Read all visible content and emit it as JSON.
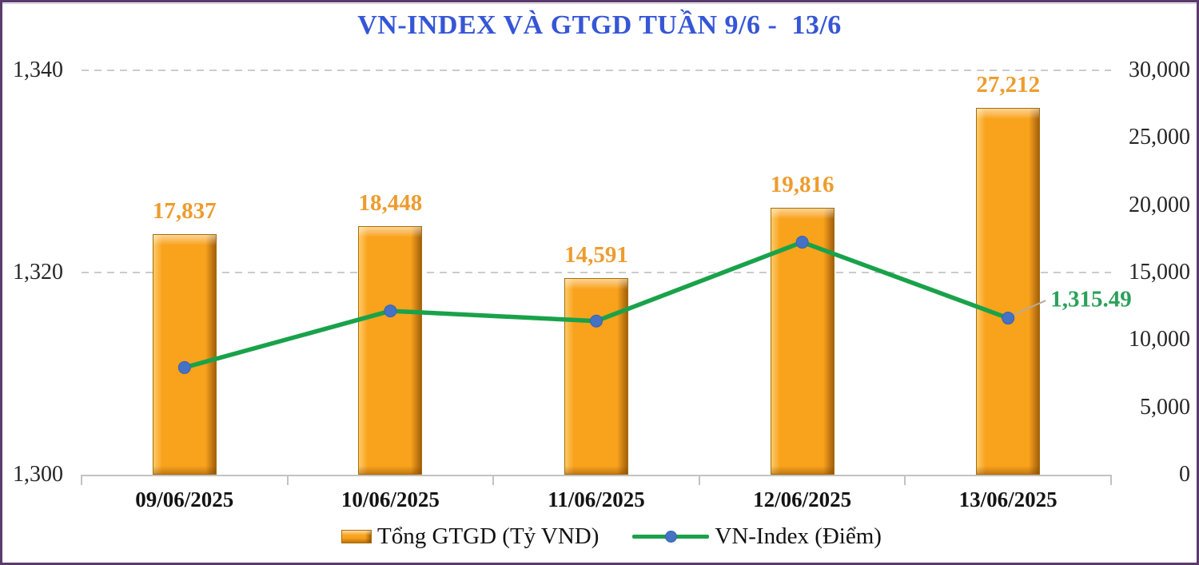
{
  "title": {
    "text": "VN-INDEX VÀ GTGD TUẦN 9/6 -  13/6",
    "color": "#3656D6"
  },
  "frame": {
    "border_color": "#5B3A6E",
    "background": "#FFFFFF"
  },
  "chart_data": {
    "type": "bar",
    "subtype": "dual-axis combo (bars on right axis, line on left axis)",
    "categories": [
      "09/06/2025",
      "10/06/2025",
      "11/06/2025",
      "12/06/2025",
      "13/06/2025"
    ],
    "series": [
      {
        "name": "Tổng GTGD (Tỷ VND)",
        "type": "bar",
        "axis": "right",
        "values": [
          17837,
          18448,
          14591,
          19816,
          27212
        ],
        "labels": [
          "17,837",
          "18,448",
          "14,591",
          "19,816",
          "27,212"
        ],
        "color": "#F9A21C",
        "label_color": "#ED9C2E"
      },
      {
        "name": "VN-Index (Điểm)",
        "type": "line",
        "axis": "left",
        "values": [
          1310.6,
          1316.2,
          1315.2,
          1323.0,
          1315.49
        ],
        "values_note": "only the last point is labeled on the chart; other values estimated from gridlines",
        "color": "#19A24A",
        "marker_color": "#4472C4",
        "end_label": "1,315.49",
        "end_label_color": "#2BA05A"
      }
    ],
    "left_axis": {
      "range": [
        1300,
        1340
      ],
      "ticks": [
        "1,340",
        "1,320",
        "1,300"
      ]
    },
    "right_axis": {
      "range": [
        0,
        30000
      ],
      "ticks": [
        "30,000",
        "25,000",
        "20,000",
        "15,000",
        "10,000",
        "5,000",
        "0"
      ]
    },
    "grid": "horizontal dashed gridlines at 1,320 and 1,340 (15,000 and 30,000)",
    "legend_position": "bottom"
  },
  "legend": {
    "items": [
      {
        "label": "Tổng GTGD (Tỷ VND)",
        "swatch": "orange-bar"
      },
      {
        "label": "VN-Index (Điểm)",
        "swatch": "green-line-blue-marker"
      }
    ]
  }
}
